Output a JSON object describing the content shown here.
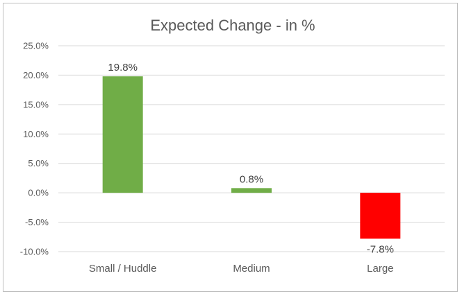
{
  "chart_data": {
    "type": "bar",
    "title": "Expected Change - in %",
    "categories": [
      "Small / Huddle",
      "Medium",
      "Large"
    ],
    "values": [
      19.8,
      0.8,
      -7.8
    ],
    "data_labels": [
      "19.8%",
      "0.8%",
      "-7.8%"
    ],
    "colors": [
      "#70ad47",
      "#70ad47",
      "#ff0000"
    ],
    "ylim": [
      -10,
      25
    ],
    "yticks": [
      25,
      20,
      15,
      10,
      5,
      0,
      -5,
      -10
    ],
    "ytick_labels": [
      "25.0%",
      "20.0%",
      "15.0%",
      "10.0%",
      "5.0%",
      "0.0%",
      "-5.0%",
      "-10.0%"
    ],
    "grid": true,
    "legend": "none"
  }
}
